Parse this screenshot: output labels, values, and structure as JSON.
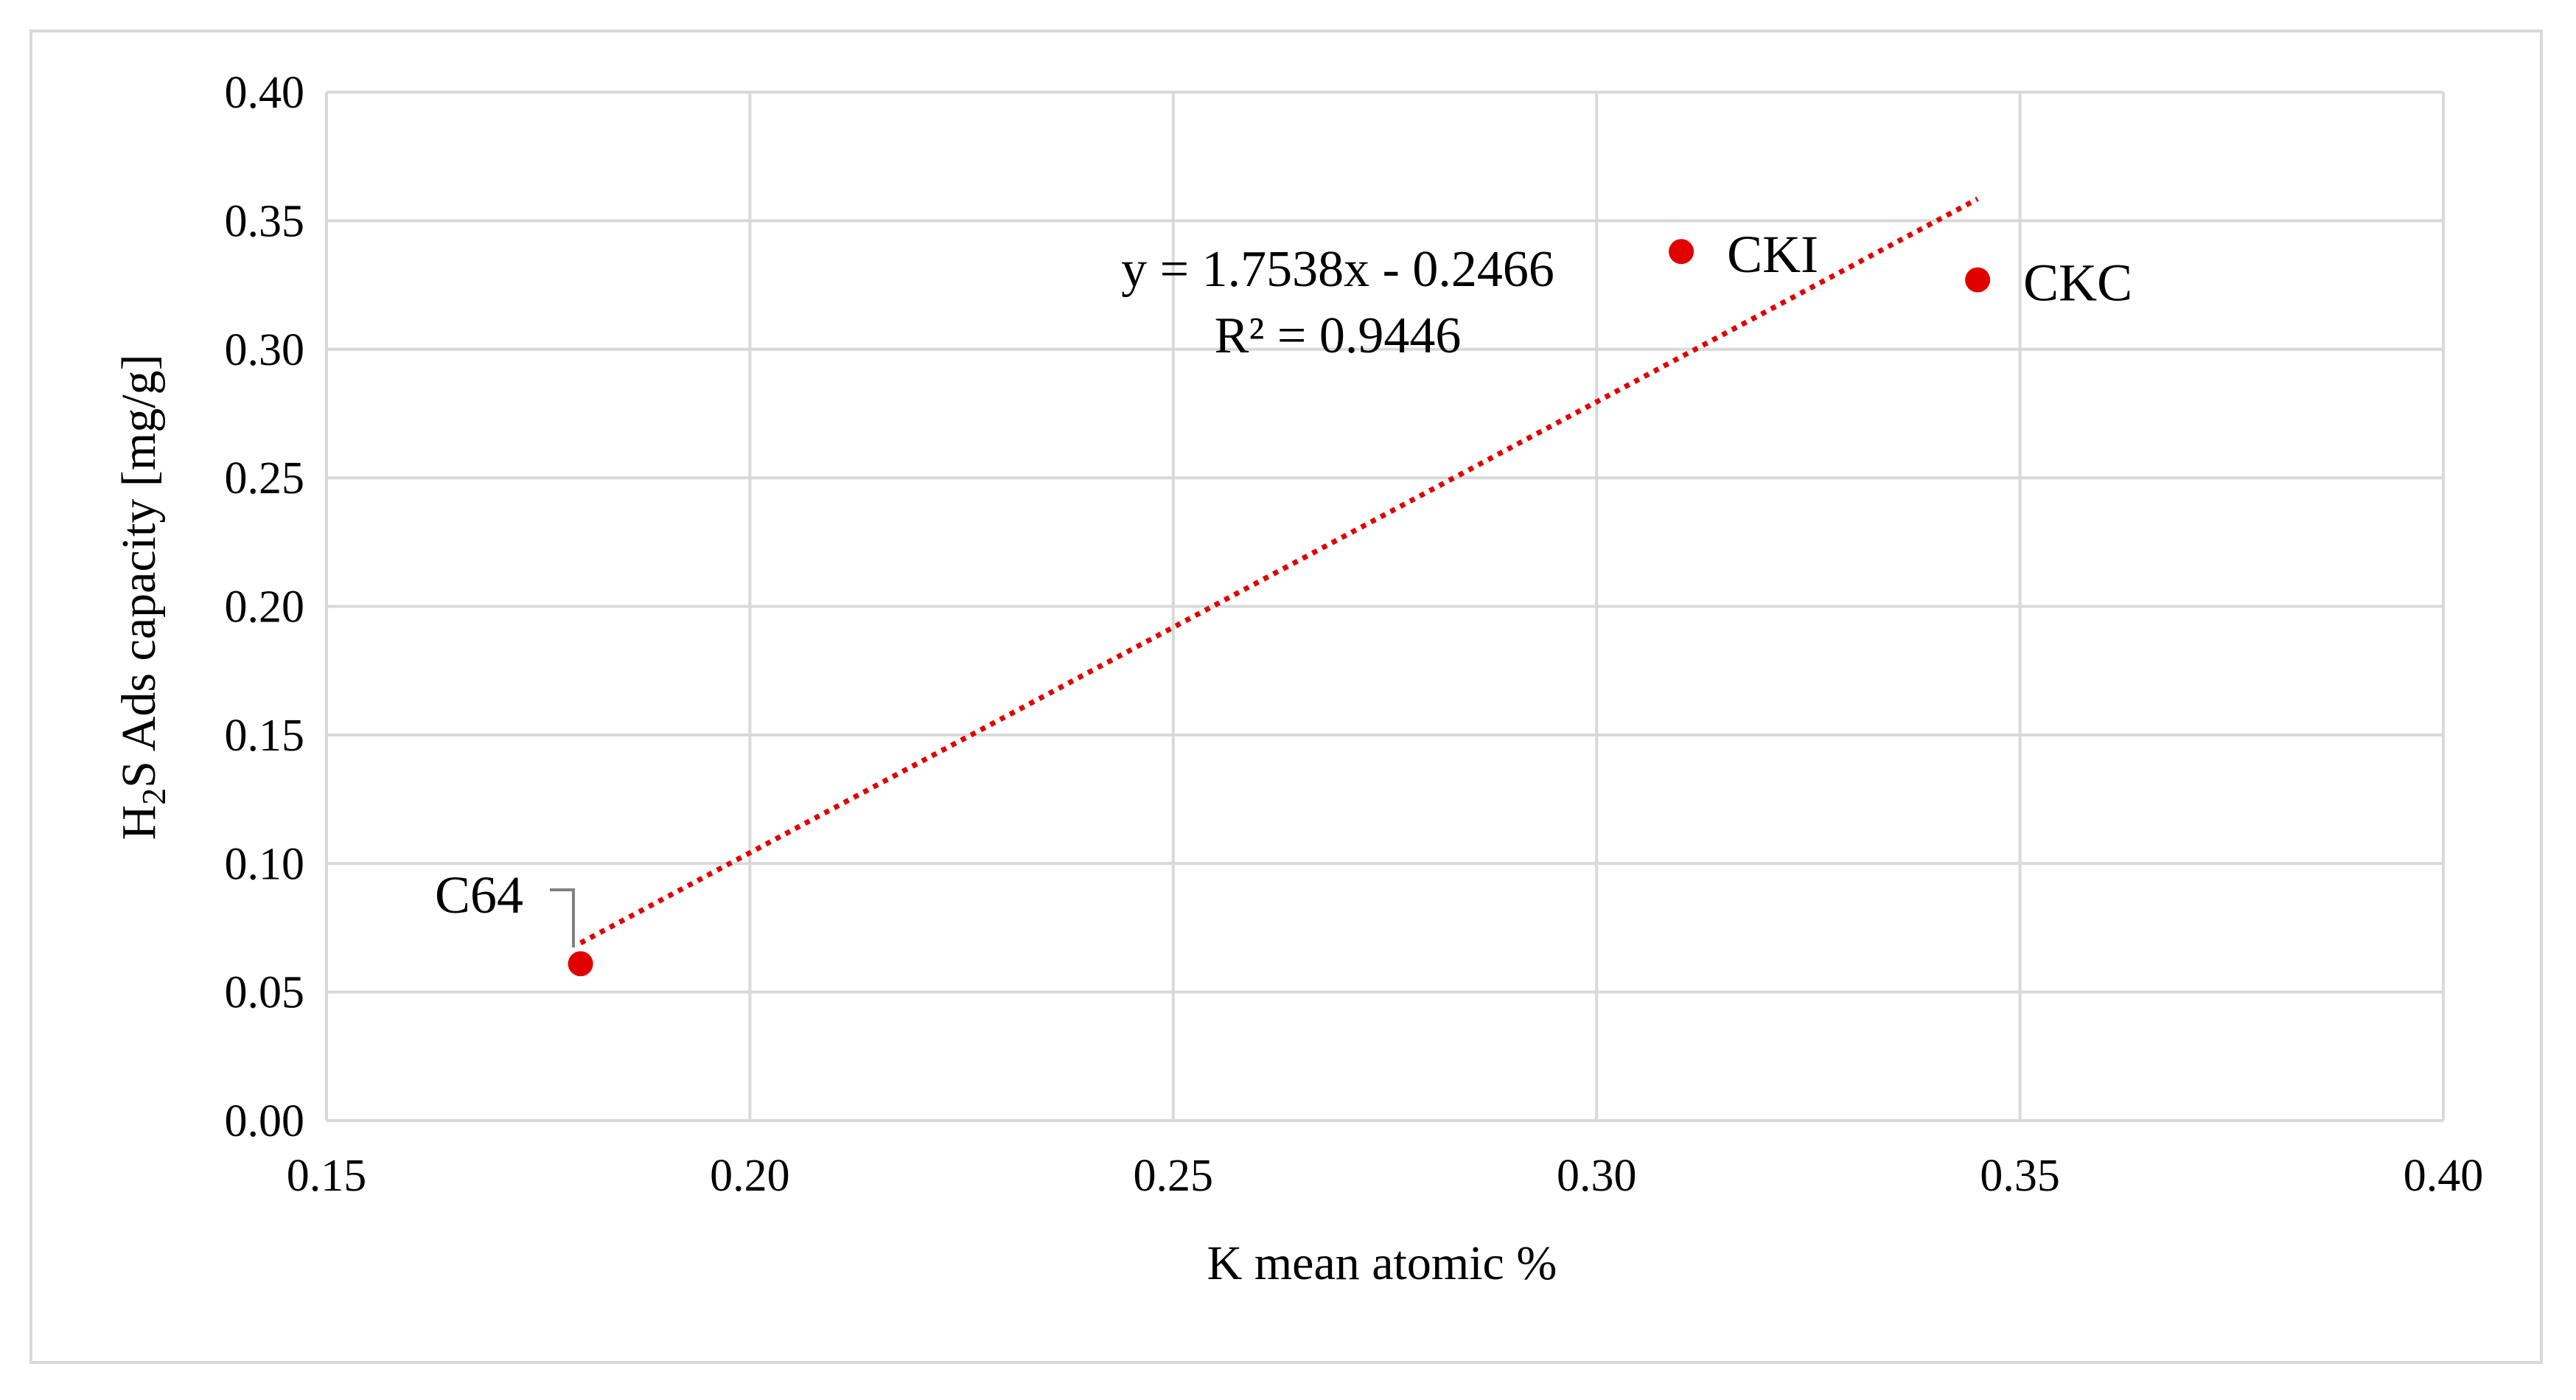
{
  "chart_data": {
    "type": "scatter",
    "title": "",
    "xlabel": "K mean atomic %",
    "ylabel": {
      "part1": "H",
      "sub": "2",
      "part2": "S Ads capacity [mg/g]"
    },
    "xlim": [
      0.15,
      0.4
    ],
    "ylim": [
      0.0,
      0.4
    ],
    "xticks": [
      "0.15",
      "0.20",
      "0.25",
      "0.30",
      "0.35",
      "0.40"
    ],
    "yticks": [
      "0.00",
      "0.05",
      "0.10",
      "0.15",
      "0.20",
      "0.25",
      "0.30",
      "0.35",
      "0.40"
    ],
    "grid": true,
    "points": [
      {
        "label": "C64",
        "x": 0.18,
        "y": 0.061
      },
      {
        "label": "CKI",
        "x": 0.31,
        "y": 0.338
      },
      {
        "label": "CKC",
        "x": 0.345,
        "y": 0.327
      }
    ],
    "point_color": "#e00000",
    "trendline": {
      "slope": 1.7538,
      "intercept": -0.2466,
      "x_range": [
        0.18,
        0.345
      ],
      "color": "#e00000",
      "style": "dotted",
      "equation": "y = 1.7538x - 0.2466",
      "r_squared": "R² = 0.9446"
    }
  }
}
